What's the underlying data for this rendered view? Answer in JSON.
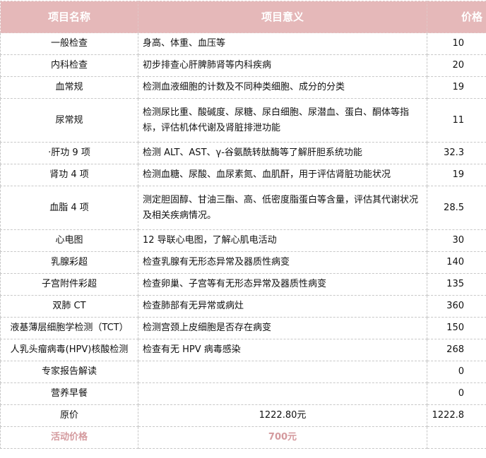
{
  "header": {
    "name": "项目名称",
    "meaning": "项目意义",
    "price": "价格"
  },
  "rows": [
    {
      "name": "一般检查",
      "meaning": "身高、体重、血压等",
      "price": "10"
    },
    {
      "name": "内科检查",
      "meaning": "初步排查心肝脾肺肾等内科疾病",
      "price": "20"
    },
    {
      "name": "血常规",
      "meaning": "检测血液细胞的计数及不同种类细胞、成分的分类",
      "price": "19"
    },
    {
      "name": "尿常规",
      "meaning": "检测尿比重、酸碱度、尿糖、尿白细胞、尿潜血、蛋白、酮体等指标，评估机体代谢及肾脏排泄功能",
      "price": "11"
    },
    {
      "name": "·肝功 9 项",
      "meaning": "检测 ALT、AST、γ-谷氨酰转肽酶等了解肝胆系统功能",
      "price": "32.3"
    },
    {
      "name": "肾功 4 项",
      "meaning": "检测血糖、尿酸、血尿素氮、血肌酐，用于评估肾脏功能状况",
      "price": "19"
    },
    {
      "name": "血脂 4 项",
      "meaning": "测定胆固醇、甘油三酯、高、低密度脂蛋白等含量，评估其代谢状况及相关疾病情况。",
      "price": "28.5"
    },
    {
      "name": "心电图",
      "meaning": "12 导联心电图，了解心肌电活动",
      "price": "30"
    },
    {
      "name": "乳腺彩超",
      "meaning": "检查乳腺有无形态异常及器质性病变",
      "price": "140"
    },
    {
      "name": "子宫附件彩超",
      "meaning": "检查卵巢、子宫等有无形态异常及器质性病变",
      "price": "135"
    },
    {
      "name": "双肺 CT",
      "meaning": "检查肺部有无异常或病灶",
      "price": "360"
    },
    {
      "name": "液基薄层细胞学检测（TCT）",
      "meaning": "检测宫颈上皮细胞是否存在病变",
      "price": "150"
    },
    {
      "name": "人乳头瘤病毒(HPV)核酸检测",
      "meaning": "检查有无 HPV 病毒感染",
      "price": "268"
    },
    {
      "name": "专家报告解读",
      "meaning": "",
      "price": "0"
    },
    {
      "name": "营养早餐",
      "meaning": "",
      "price": "0"
    }
  ],
  "original": {
    "name": "原价",
    "meaning": "1222.80元",
    "price": "1222.8"
  },
  "promo": {
    "name": "活动价格",
    "meaning": "700元",
    "price": ""
  },
  "colors": {
    "header_bg": "#e5b8b9",
    "promo_text": "#d49a9e"
  }
}
